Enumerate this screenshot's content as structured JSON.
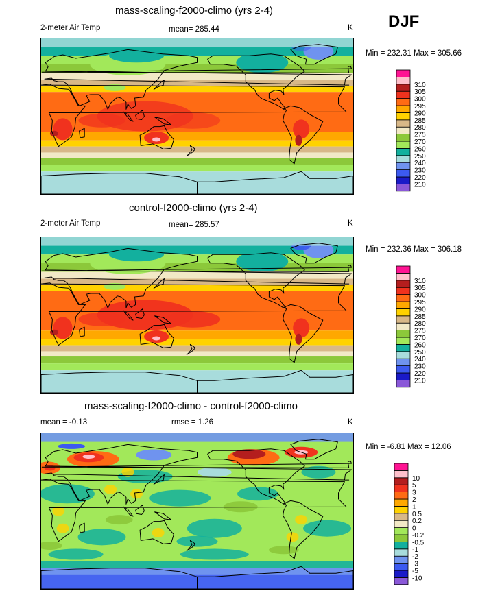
{
  "season": "DJF",
  "colors": {
    "abs": [
      "#8a58d8",
      "#1a1ac8",
      "#3c5af0",
      "#6f93ef",
      "#a8dcdc",
      "#13b09e",
      "#a2e85a",
      "#8cc83a",
      "#f2e9c6",
      "#d8b888",
      "#ffd200",
      "#ffa800",
      "#ff6b14",
      "#f0321e",
      "#b41e1e",
      "#ffc0cb",
      "#ff1493"
    ],
    "diff": [
      "#8a58d8",
      "#1a1ac8",
      "#3c5af0",
      "#6f93ef",
      "#a8dcdc",
      "#13b09e",
      "#8cc83a",
      "#a2e85a",
      "#f2e9c6",
      "#d8b888",
      "#ffd200",
      "#ffa800",
      "#ff6b14",
      "#f0321e",
      "#b41e1e",
      "#ffc0cb",
      "#ff1493"
    ]
  },
  "chart_data": [
    {
      "type": "heatmap",
      "title": "mass-scaling-f2000-climo (yrs 2-4)",
      "variable": "2-meter Air Temp",
      "mean_text": "mean= 285.44",
      "units": "K",
      "minmax_text": "Min = 232.31 Max = 305.66",
      "levels": [
        "210",
        "220",
        "230",
        "240",
        "250",
        "260",
        "270",
        "275",
        "280",
        "285",
        "290",
        "295",
        "300",
        "305",
        "310"
      ]
    },
    {
      "type": "heatmap",
      "title": "control-f2000-climo (yrs 2-4)",
      "variable": "2-meter Air Temp",
      "mean_text": "mean= 285.57",
      "units": "K",
      "minmax_text": "Min = 232.36 Max = 306.18",
      "levels": [
        "210",
        "220",
        "230",
        "240",
        "250",
        "260",
        "270",
        "275",
        "280",
        "285",
        "290",
        "295",
        "300",
        "305",
        "310"
      ]
    },
    {
      "type": "heatmap",
      "title": "mass-scaling-f2000-climo - control-f2000-climo",
      "mean_text": "mean =  -0.13",
      "rmse_text": "rmse =   1.26",
      "units": "K",
      "minmax_text": "Min =  -6.81 Max =  12.06",
      "levels": [
        "-10",
        "-5",
        "-3",
        "-2",
        "-1",
        "-0.5",
        "-0.2",
        "0",
        "0.2",
        "0.5",
        "1",
        "2",
        "3",
        "5",
        "10"
      ]
    }
  ]
}
